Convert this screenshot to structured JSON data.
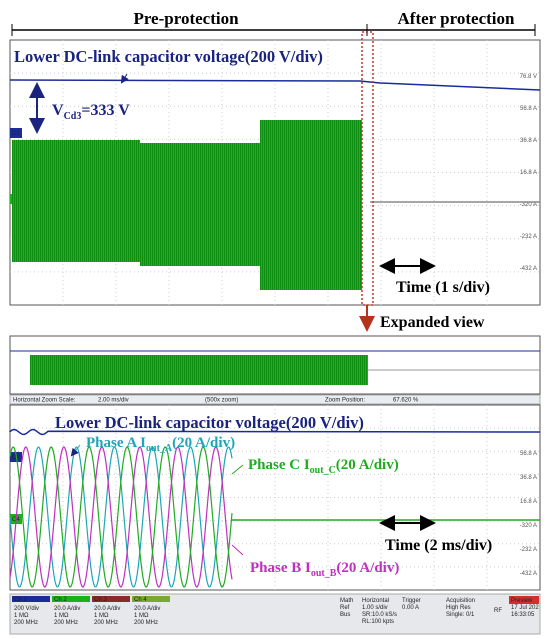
{
  "header": {
    "left": "Pre-protection",
    "right": "After protection"
  },
  "top_scope": {
    "voltage_label": "Lower DC-link capacitor voltage(200 V/div)",
    "vcd": {
      "main": "V",
      "sub": "Cd3",
      "rest": "=333 V"
    },
    "time_label": "Time (1 s/div)",
    "channels": [
      "C1",
      "C4"
    ],
    "scale_labels": [
      "76.8 V",
      "56.8 A",
      "36.8 A",
      "16.8 A",
      "-320 A",
      "-232 A",
      "-432 A"
    ]
  },
  "expanded_label": "Expanded view",
  "zoom_bar": {
    "scale_label": "Horizontal Zoom Scale:",
    "scale": "2.00 ms/div",
    "zoom": "(500x zoom)",
    "position_label": "Zoom Position:",
    "position": "67.620 %"
  },
  "bottom_scope": {
    "voltage_label": "Lower DC-link capacitor voltage(200 V/div)",
    "phase_a": {
      "main": "Phase A I",
      "sub": "out_A",
      "rest": "(20 A/div)"
    },
    "phase_c": {
      "main": "Phase C I",
      "sub": "out_C",
      "rest": "(20 A/div)"
    },
    "phase_b": {
      "main": "Phase B I",
      "sub": "out_B",
      "rest": "(20 A/div)"
    },
    "time_label": "Time (2 ms/div)",
    "channels": [
      "C1",
      "C4"
    ],
    "scale_labels": [
      "56.8 A",
      "36.8 A",
      "16.8 A",
      "-320 A",
      "-232 A",
      "-432 A"
    ]
  },
  "status_bar": {
    "channels": [
      {
        "name": "Ch 1",
        "lines": [
          "200 V/div",
          "1 MΩ",
          "200 MHz"
        ]
      },
      {
        "name": "Ch 2",
        "lines": [
          "20.0 A/div",
          "1 MΩ",
          "200 MHz"
        ]
      },
      {
        "name": "Ch 3",
        "lines": [
          "20.0 A/div",
          "1 MΩ",
          "200 MHz"
        ]
      },
      {
        "name": "Ch 4",
        "lines": [
          "20.0 A/div",
          "1 MΩ",
          "200 MHz"
        ]
      }
    ],
    "math": [
      "Math",
      "Ref",
      "Bus"
    ],
    "horizontal": [
      "Horizontal",
      "1.00 s/div",
      "SR:10.0 kS/s",
      "RL:100 kpts"
    ],
    "trigger": [
      "Trigger",
      "0.00 A"
    ],
    "acquisition": [
      "Acquisition",
      "High Res",
      "Single: 0/1"
    ],
    "rf": "RF",
    "preview": [
      "Preview",
      "17 Jul 202",
      "16:33:05"
    ]
  }
}
